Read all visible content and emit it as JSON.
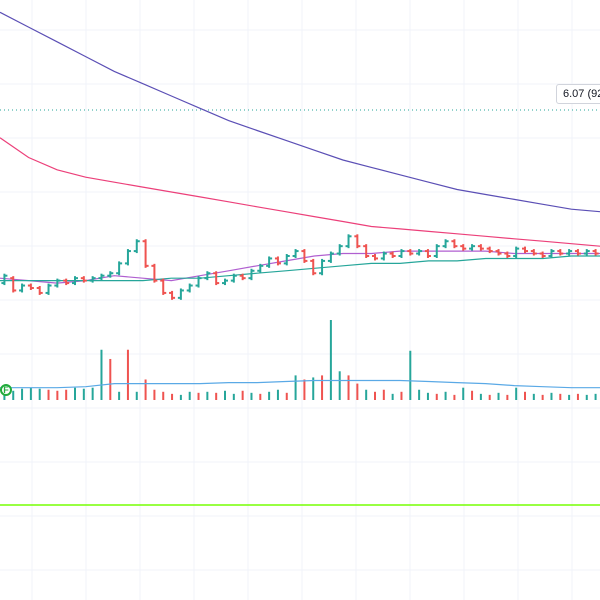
{
  "price_label": "6.07 (92",
  "event_flag": "F",
  "colors": {
    "up": "#26a69a",
    "down": "#ef5350",
    "ma_slow": "#5b4fb5",
    "ma_mid": "#ec407a",
    "ma_fast": "#b05fd0",
    "ma_base": "#26a69a",
    "volume_avg": "#5aa9e6",
    "indicator_line": "#76ff03",
    "price_line": "#26a69a",
    "grid": "#f0f3fa"
  },
  "chart_data": {
    "type": "bar",
    "series": [
      {
        "name": "",
        "kind": "ohlc",
        "open_close": [
          [
            5.95,
            5.98
          ],
          [
            5.97,
            5.92
          ],
          [
            5.92,
            5.94
          ],
          [
            5.94,
            5.93
          ],
          [
            5.93,
            5.91
          ],
          [
            5.91,
            5.94
          ],
          [
            5.94,
            5.96
          ],
          [
            5.96,
            5.95
          ],
          [
            5.95,
            5.97
          ],
          [
            5.97,
            5.96
          ],
          [
            5.96,
            5.97
          ],
          [
            5.97,
            5.98
          ],
          [
            5.98,
            5.99
          ],
          [
            5.99,
            6.03
          ],
          [
            6.03,
            6.08
          ],
          [
            6.08,
            6.12
          ],
          [
            6.12,
            6.02
          ],
          [
            6.02,
            5.96
          ],
          [
            5.96,
            5.91
          ],
          [
            5.91,
            5.89
          ],
          [
            5.89,
            5.92
          ],
          [
            5.92,
            5.94
          ],
          [
            5.94,
            5.97
          ],
          [
            5.97,
            5.99
          ],
          [
            5.99,
            5.95
          ],
          [
            5.95,
            5.96
          ],
          [
            5.96,
            5.98
          ],
          [
            5.98,
            5.97
          ],
          [
            5.97,
            6.0
          ],
          [
            6.0,
            6.02
          ],
          [
            6.02,
            6.05
          ],
          [
            6.05,
            6.03
          ],
          [
            6.03,
            6.06
          ],
          [
            6.06,
            6.08
          ],
          [
            6.08,
            6.04
          ],
          [
            6.04,
            5.99
          ],
          [
            5.99,
            6.04
          ],
          [
            6.04,
            6.07
          ],
          [
            6.07,
            6.1
          ],
          [
            6.1,
            6.14
          ],
          [
            6.14,
            6.1
          ],
          [
            6.1,
            6.06
          ],
          [
            6.06,
            6.05
          ],
          [
            6.05,
            6.07
          ],
          [
            6.07,
            6.06
          ],
          [
            6.06,
            6.08
          ],
          [
            6.08,
            6.07
          ],
          [
            6.07,
            6.08
          ],
          [
            6.08,
            6.06
          ],
          [
            6.06,
            6.1
          ],
          [
            6.1,
            6.12
          ],
          [
            6.12,
            6.1
          ],
          [
            6.1,
            6.09
          ],
          [
            6.09,
            6.1
          ],
          [
            6.1,
            6.09
          ],
          [
            6.09,
            6.08
          ],
          [
            6.08,
            6.07
          ],
          [
            6.07,
            6.06
          ],
          [
            6.06,
            6.09
          ],
          [
            6.09,
            6.08
          ],
          [
            6.08,
            6.07
          ],
          [
            6.07,
            6.06
          ],
          [
            6.06,
            6.08
          ],
          [
            6.08,
            6.07
          ],
          [
            6.07,
            6.08
          ],
          [
            6.08,
            6.07
          ],
          [
            6.07,
            6.08
          ],
          [
            6.08,
            6.07
          ]
        ]
      },
      {
        "name": "",
        "kind": "ma",
        "values": [
          7.05,
          6.99,
          6.93,
          6.87,
          6.81,
          6.76,
          6.71,
          6.66,
          6.61,
          6.57,
          6.53,
          6.49,
          6.45,
          6.42,
          6.39,
          6.36,
          6.33,
          6.31,
          6.29,
          6.27,
          6.25,
          6.24
        ]
      },
      {
        "name": "",
        "kind": "ma",
        "values": [
          6.54,
          6.46,
          6.41,
          6.38,
          6.36,
          6.34,
          6.32,
          6.3,
          6.28,
          6.26,
          6.24,
          6.22,
          6.2,
          6.18,
          6.17,
          6.16,
          6.15,
          6.14,
          6.13,
          6.12,
          6.11,
          6.1
        ]
      },
      {
        "name": "",
        "kind": "ma",
        "values": [
          5.97,
          5.96,
          5.95,
          5.96,
          5.98,
          5.97,
          5.96,
          5.98,
          6.0,
          6.02,
          6.04,
          6.06,
          6.07,
          6.07,
          6.08,
          6.08,
          6.08,
          6.08,
          6.07,
          6.07,
          6.07,
          6.07
        ]
      },
      {
        "name": "",
        "kind": "ma",
        "values": [
          5.96,
          5.96,
          5.96,
          5.96,
          5.96,
          5.96,
          5.97,
          5.97,
          5.98,
          5.99,
          6.0,
          6.01,
          6.02,
          6.03,
          6.03,
          6.04,
          6.04,
          6.05,
          6.05,
          6.05,
          6.06,
          6.06
        ]
      }
    ],
    "volume": [
      {
        "v": 10,
        "up": true
      },
      {
        "v": 9,
        "up": true
      },
      {
        "v": 11,
        "up": true
      },
      {
        "v": 12,
        "up": true
      },
      {
        "v": 11,
        "up": true
      },
      {
        "v": 10,
        "up": false
      },
      {
        "v": 9,
        "up": false
      },
      {
        "v": 10,
        "up": false
      },
      {
        "v": 12,
        "up": true
      },
      {
        "v": 11,
        "up": true
      },
      {
        "v": 12,
        "up": true
      },
      {
        "v": 49,
        "up": true
      },
      {
        "v": 40,
        "up": false
      },
      {
        "v": 8,
        "up": true
      },
      {
        "v": 49,
        "up": false
      },
      {
        "v": 8,
        "up": true
      },
      {
        "v": 20,
        "up": false
      },
      {
        "v": 10,
        "up": false
      },
      {
        "v": 8,
        "up": false
      },
      {
        "v": 6,
        "up": false
      },
      {
        "v": 5,
        "up": true
      },
      {
        "v": 8,
        "up": true
      },
      {
        "v": 7,
        "up": false
      },
      {
        "v": 8,
        "up": true
      },
      {
        "v": 7,
        "up": false
      },
      {
        "v": 9,
        "up": true
      },
      {
        "v": 6,
        "up": true
      },
      {
        "v": 9,
        "up": false
      },
      {
        "v": 7,
        "up": true
      },
      {
        "v": 6,
        "up": false
      },
      {
        "v": 8,
        "up": true
      },
      {
        "v": 10,
        "up": true
      },
      {
        "v": 7,
        "up": false
      },
      {
        "v": 24,
        "up": true
      },
      {
        "v": 20,
        "up": false
      },
      {
        "v": 22,
        "up": true
      },
      {
        "v": 24,
        "up": false
      },
      {
        "v": 78,
        "up": true
      },
      {
        "v": 28,
        "up": true
      },
      {
        "v": 24,
        "up": false
      },
      {
        "v": 16,
        "up": false
      },
      {
        "v": 10,
        "up": true
      },
      {
        "v": 8,
        "up": false
      },
      {
        "v": 10,
        "up": false
      },
      {
        "v": 6,
        "up": true
      },
      {
        "v": 8,
        "up": false
      },
      {
        "v": 48,
        "up": true
      },
      {
        "v": 10,
        "up": true
      },
      {
        "v": 7,
        "up": true
      },
      {
        "v": 6,
        "up": false
      },
      {
        "v": 8,
        "up": true
      },
      {
        "v": 5,
        "up": false
      },
      {
        "v": 12,
        "up": true
      },
      {
        "v": 9,
        "up": false
      },
      {
        "v": 6,
        "up": true
      },
      {
        "v": 5,
        "up": false
      },
      {
        "v": 7,
        "up": true
      },
      {
        "v": 5,
        "up": false
      },
      {
        "v": 12,
        "up": true
      },
      {
        "v": 8,
        "up": false
      },
      {
        "v": 6,
        "up": true
      },
      {
        "v": 5,
        "up": false
      },
      {
        "v": 7,
        "up": true
      },
      {
        "v": 6,
        "up": false
      },
      {
        "v": 5,
        "up": true
      },
      {
        "v": 6,
        "up": false
      },
      {
        "v": 5,
        "up": true
      },
      {
        "v": 6,
        "up": true
      }
    ],
    "volume_average": [
      12,
      12,
      12,
      13,
      16,
      16,
      16,
      16,
      17,
      17,
      18,
      19,
      19,
      19,
      19,
      18,
      17,
      16,
      14,
      13,
      12,
      12
    ],
    "price_level": 6.3,
    "indicator_level": 0.0,
    "ylim": [
      5.8,
      7.1
    ],
    "grid": true
  }
}
